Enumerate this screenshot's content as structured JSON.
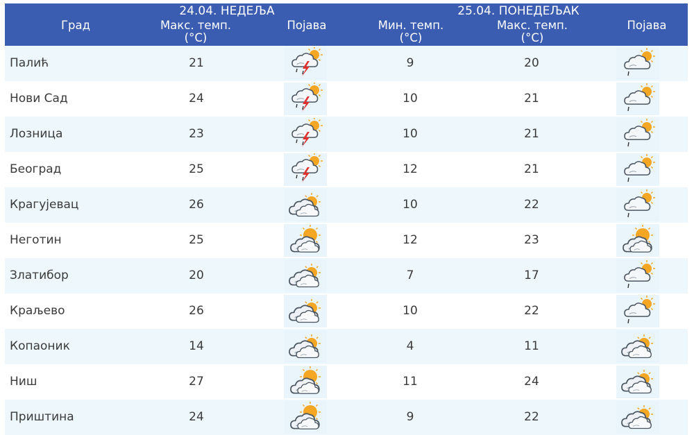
{
  "header": {
    "city_col": "Град",
    "day1": "24.04. НЕДЕЉА",
    "day2": "25.04. ПОНЕДЕЉАК",
    "max_temp_line1": "Макс. темп.",
    "min_temp_line1": "Мин. темп.",
    "unit": "(°C)",
    "phenomenon": "Појава"
  },
  "rows": [
    {
      "city": "Палић",
      "max1": "21",
      "icon1": "storm-lightning-icon",
      "min2": "9",
      "max2": "20",
      "icon2": "cloud-sun-drizzle-icon"
    },
    {
      "city": "Нови Сад",
      "max1": "24",
      "icon1": "storm-lightning-icon",
      "min2": "10",
      "max2": "21",
      "icon2": "cloud-sun-drizzle-icon"
    },
    {
      "city": "Лозница",
      "max1": "23",
      "icon1": "storm-lightning-icon",
      "min2": "10",
      "max2": "21",
      "icon2": "cloud-sun-drizzle-icon"
    },
    {
      "city": "Београд",
      "max1": "25",
      "icon1": "storm-lightning-icon",
      "min2": "12",
      "max2": "21",
      "icon2": "cloud-sun-drizzle-icon"
    },
    {
      "city": "Крагујевац",
      "max1": "26",
      "icon1": "cloudy-sun-icon",
      "min2": "10",
      "max2": "22",
      "icon2": "cloud-sun-drizzle-icon"
    },
    {
      "city": "Неготин",
      "max1": "25",
      "icon1": "partly-cloudy-icon",
      "min2": "12",
      "max2": "23",
      "icon2": "partly-cloudy-icon"
    },
    {
      "city": "Златибор",
      "max1": "20",
      "icon1": "cloudy-sun-icon",
      "min2": "7",
      "max2": "17",
      "icon2": "cloud-sun-drizzle-icon"
    },
    {
      "city": "Краљево",
      "max1": "26",
      "icon1": "cloudy-sun-icon",
      "min2": "10",
      "max2": "22",
      "icon2": "cloud-sun-drizzle-icon"
    },
    {
      "city": "Копаоник",
      "max1": "14",
      "icon1": "cloudy-sun-icon",
      "min2": "4",
      "max2": "11",
      "icon2": "cloudy-sun-icon"
    },
    {
      "city": "Ниш",
      "max1": "27",
      "icon1": "partly-cloudy-icon",
      "min2": "11",
      "max2": "24",
      "icon2": "cloudy-sun-icon"
    },
    {
      "city": "Приштина",
      "max1": "24",
      "icon1": "partly-cloudy-icon",
      "min2": "9",
      "max2": "22",
      "icon2": "cloudy-sun-icon"
    }
  ],
  "colors": {
    "header_bg": "#3a5db2",
    "row_alt_bg": "#eef8fc",
    "icon_bg": "#e9f5fb",
    "sun": "#f5a623",
    "lightning": "#e0302c"
  }
}
